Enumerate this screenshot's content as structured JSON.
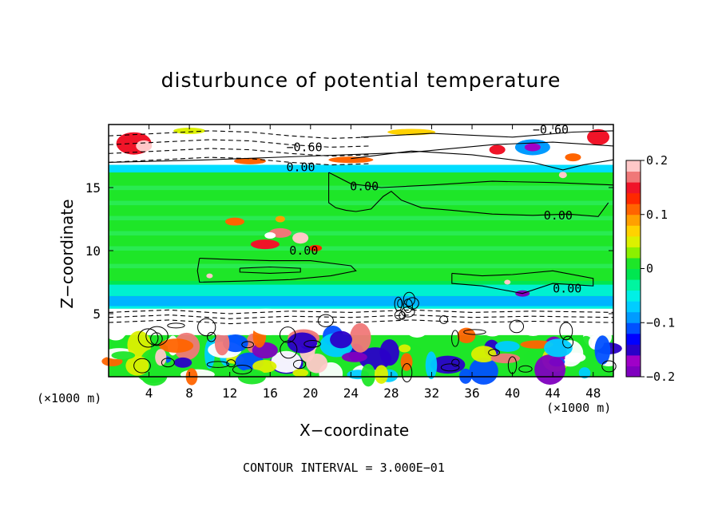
{
  "chart_data": {
    "type": "heatmap",
    "title": "disturbunce of potential temperature",
    "xlabel": "X−coordinate",
    "ylabel": "Z−coordinate",
    "x_unit_left": "(×1000 m)",
    "x_unit_right": "(×1000 m)",
    "contour_note": "CONTOUR INTERVAL = 3.000E−01",
    "xlim": [
      0,
      50
    ],
    "ylim": [
      0,
      20
    ],
    "x_ticks": [
      "4",
      "8",
      "12",
      "16",
      "20",
      "24",
      "28",
      "32",
      "36",
      "40",
      "44",
      "48"
    ],
    "x_tick_values": [
      4,
      8,
      12,
      16,
      20,
      24,
      28,
      32,
      36,
      40,
      44,
      48
    ],
    "y_ticks": [
      "5",
      "10",
      "15"
    ],
    "y_tick_values": [
      5,
      10,
      15
    ],
    "colorbar": {
      "range": [
        -0.2,
        0.2
      ],
      "tick_labels": [
        "0.2",
        "0.1",
        "0",
        "−0.1",
        "−0.2"
      ],
      "tick_values": [
        0.2,
        0.1,
        0,
        -0.1,
        -0.2
      ],
      "colors": [
        "#7f00bf",
        "#a000c8",
        "#2a00c8",
        "#0000ff",
        "#0050ff",
        "#009bff",
        "#00cdff",
        "#00f0e6",
        "#00f5a0",
        "#00e650",
        "#1ee628",
        "#8cf000",
        "#dcf000",
        "#ffd200",
        "#ffa000",
        "#ff6400",
        "#ff2800",
        "#f01428",
        "#f07878",
        "#ffc8c8"
      ]
    },
    "bands": [
      {
        "z": [
          0,
          3.3
        ],
        "value": "mixed"
      },
      {
        "z": [
          3.3,
          5.4
        ],
        "value": -0.3
      },
      {
        "z": [
          5.4,
          6.4
        ],
        "value": -0.05
      },
      {
        "z": [
          6.4,
          7.6
        ],
        "value": -0.02
      },
      {
        "z": [
          7.6,
          16.2
        ],
        "value": 0.0
      },
      {
        "z": [
          16.2,
          16.8
        ],
        "value": -0.07
      },
      {
        "z": [
          16.8,
          20
        ],
        "value": -0.6
      }
    ],
    "contour_labels": [
      {
        "text": "0.00",
        "x": 23.9,
        "z": 15.1
      },
      {
        "text": "0.00",
        "x": 43.1,
        "z": 12.8
      },
      {
        "text": "0.00",
        "x": 17.9,
        "z": 10.0
      },
      {
        "text": "0.00",
        "x": 44.0,
        "z": 7.0
      },
      {
        "text": "0.00",
        "x": 17.6,
        "z": 16.6
      },
      {
        "text": "−0.60",
        "x": 17.6,
        "z": 18.2
      },
      {
        "text": "−0.60",
        "x": 42.0,
        "z": 19.6
      }
    ]
  }
}
